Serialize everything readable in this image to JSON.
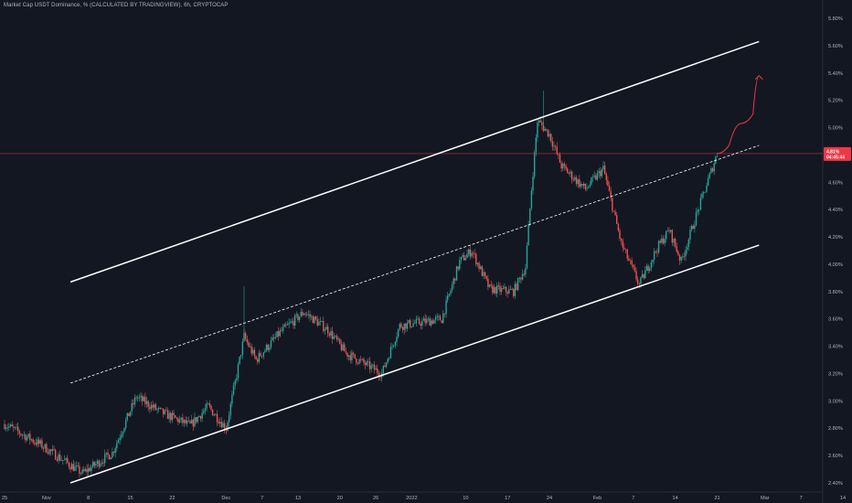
{
  "header": {
    "title": "Market Cap USDT Dominance, % (CALCULATED BY TRADINGVIEW), 6h, CRYPTOCAP"
  },
  "colors": {
    "background": "#131722",
    "up_candle": "#26a69a",
    "down_candle": "#ef5350",
    "channel_line": "#ffffff",
    "projection": "#f23645",
    "price_line": "#f23645",
    "axis_text": "#b2b5be"
  },
  "chart_data": {
    "type": "candlestick",
    "title": "Market Cap USDT Dominance, % (CALCULATED BY TRADINGVIEW), 6h, CRYPTOCAP",
    "y_unit": "%",
    "y_ticks": [
      "5.80%",
      "5.60%",
      "5.40%",
      "5.20%",
      "5.00%",
      "4.80%",
      "4.60%",
      "4.40%",
      "4.20%",
      "4.00%",
      "3.80%",
      "3.60%",
      "3.40%",
      "3.20%",
      "3.00%",
      "2.80%",
      "2.60%",
      "2.40%"
    ],
    "ylim": [
      2.36,
      5.88
    ],
    "x_ticks": [
      "25",
      "Nov",
      "8",
      "15",
      "22",
      "Dec",
      "7",
      "13",
      "20",
      "26",
      "2022",
      "10",
      "17",
      "24",
      "Feb",
      "7",
      "14",
      "21",
      "Mar",
      "7",
      "14"
    ],
    "last_price": {
      "value": 4.81,
      "label": "4.81%",
      "countdown": "04:45:44"
    },
    "path_anchors": [
      {
        "date": "2021-10-25",
        "close": 2.83
      },
      {
        "date": "2021-10-31",
        "close": 2.68
      },
      {
        "date": "2021-11-07",
        "close": 2.47
      },
      {
        "date": "2021-11-12",
        "close": 2.62
      },
      {
        "date": "2021-11-16",
        "close": 3.03
      },
      {
        "date": "2021-11-20",
        "close": 2.92
      },
      {
        "date": "2021-11-25",
        "close": 2.82
      },
      {
        "date": "2021-11-28",
        "close": 2.96
      },
      {
        "date": "2021-12-01",
        "close": 2.8
      },
      {
        "date": "2021-12-04",
        "close": 3.47
      },
      {
        "date": "2021-12-06",
        "close": 3.3
      },
      {
        "date": "2021-12-10",
        "close": 3.5
      },
      {
        "date": "2021-12-14",
        "close": 3.65
      },
      {
        "date": "2021-12-18",
        "close": 3.52
      },
      {
        "date": "2021-12-21",
        "close": 3.35
      },
      {
        "date": "2021-12-27",
        "close": 3.2
      },
      {
        "date": "2021-12-30",
        "close": 3.55
      },
      {
        "date": "2022-01-06",
        "close": 3.6
      },
      {
        "date": "2022-01-09",
        "close": 4.02
      },
      {
        "date": "2022-01-11",
        "close": 4.1
      },
      {
        "date": "2022-01-14",
        "close": 3.82
      },
      {
        "date": "2022-01-18",
        "close": 3.8
      },
      {
        "date": "2022-01-20",
        "close": 3.98
      },
      {
        "date": "2022-01-21",
        "close": 4.55
      },
      {
        "date": "2022-01-22",
        "close": 5.05
      },
      {
        "date": "2022-01-24",
        "close": 4.95
      },
      {
        "date": "2022-01-26",
        "close": 4.72
      },
      {
        "date": "2022-01-30",
        "close": 4.55
      },
      {
        "date": "2022-02-02",
        "close": 4.7
      },
      {
        "date": "2022-02-05",
        "close": 4.15
      },
      {
        "date": "2022-02-08",
        "close": 3.85
      },
      {
        "date": "2022-02-11",
        "close": 4.12
      },
      {
        "date": "2022-02-13",
        "close": 4.25
      },
      {
        "date": "2022-02-15",
        "close": 4.02
      },
      {
        "date": "2022-02-18",
        "close": 4.42
      },
      {
        "date": "2022-02-21",
        "close": 4.81
      }
    ],
    "channel": {
      "upper": [
        {
          "date": "2021-11-05",
          "value": 3.87
        },
        {
          "date": "2022-02-28",
          "value": 5.63
        }
      ],
      "middle": [
        {
          "date": "2021-11-05",
          "value": 3.13
        },
        {
          "date": "2022-02-28",
          "value": 4.87
        }
      ],
      "lower": [
        {
          "date": "2021-11-05",
          "value": 2.4
        },
        {
          "date": "2022-02-28",
          "value": 4.14
        }
      ]
    },
    "projection": [
      {
        "date": "2022-02-21",
        "value": 4.81
      },
      {
        "date": "2022-02-23",
        "value": 4.87
      },
      {
        "date": "2022-02-25",
        "value": 5.03
      },
      {
        "date": "2022-02-27",
        "value": 5.1
      },
      {
        "date": "2022-02-28",
        "value": 5.38
      }
    ]
  }
}
